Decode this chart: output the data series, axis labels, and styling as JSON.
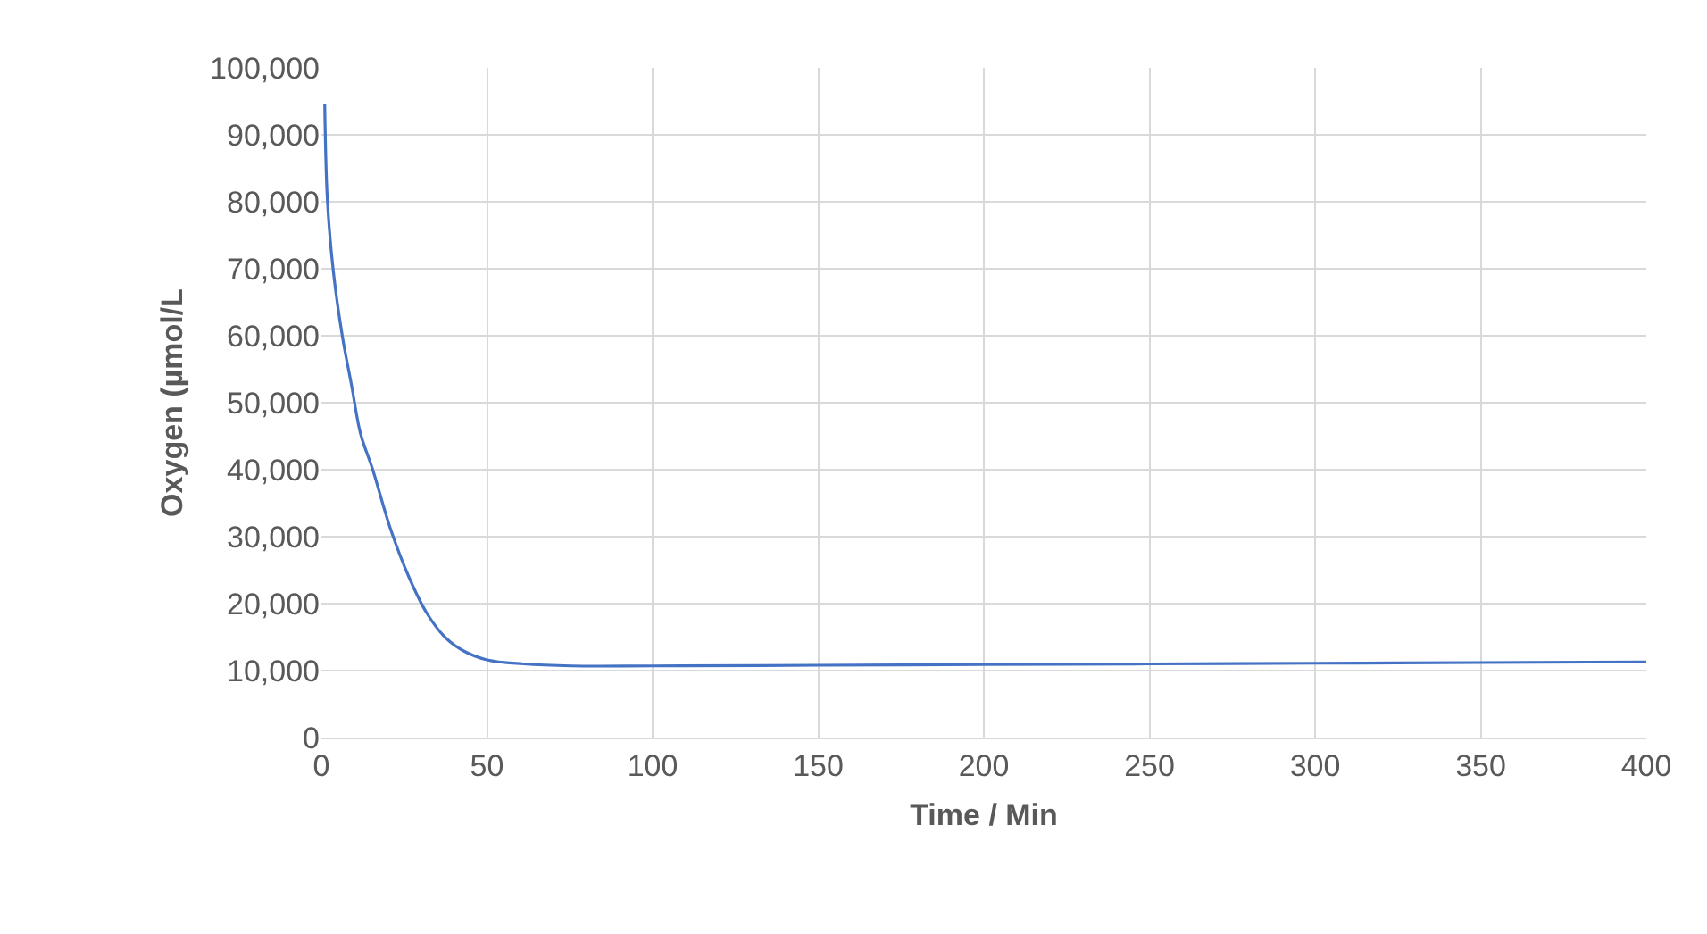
{
  "chart_data": {
    "type": "line",
    "xlabel": "Time / Min",
    "ylabel": "Oxygen (µmol/L",
    "x": [
      1,
      1.8,
      3.6,
      6.4,
      9.1,
      11.8,
      15.5,
      20.9,
      26.4,
      31.8,
      37.3,
      42.7,
      50,
      61,
      75.5,
      100,
      150,
      200,
      250,
      300,
      350,
      400
    ],
    "series": [
      {
        "color": "#4472c4",
        "values": [
          94600,
          80300,
          69600,
          59700,
          52600,
          45400,
          40000,
          31100,
          24000,
          18600,
          15000,
          13000,
          11600,
          11000,
          10700,
          10700,
          10800,
          10900,
          11000,
          11100,
          11200,
          11300
        ]
      }
    ],
    "xlim": [
      0,
      400
    ],
    "xticks": [
      0,
      50,
      100,
      150,
      200,
      250,
      300,
      350,
      400
    ],
    "ylim": [
      0,
      100000
    ],
    "yticks": [
      {
        "value": 0,
        "label": "0"
      },
      {
        "value": 10000,
        "label": "10,000"
      },
      {
        "value": 20000,
        "label": "20,000"
      },
      {
        "value": 30000,
        "label": "30,000"
      },
      {
        "value": 40000,
        "label": "40,000"
      },
      {
        "value": 50000,
        "label": "50,000"
      },
      {
        "value": 60000,
        "label": "60,000"
      },
      {
        "value": 70000,
        "label": "70,000"
      },
      {
        "value": 80000,
        "label": "80,000"
      },
      {
        "value": 90000,
        "label": "90,000"
      },
      {
        "value": 100000,
        "label": "100,000"
      }
    ],
    "grid": true,
    "marker": "none",
    "line_style": "solid"
  }
}
